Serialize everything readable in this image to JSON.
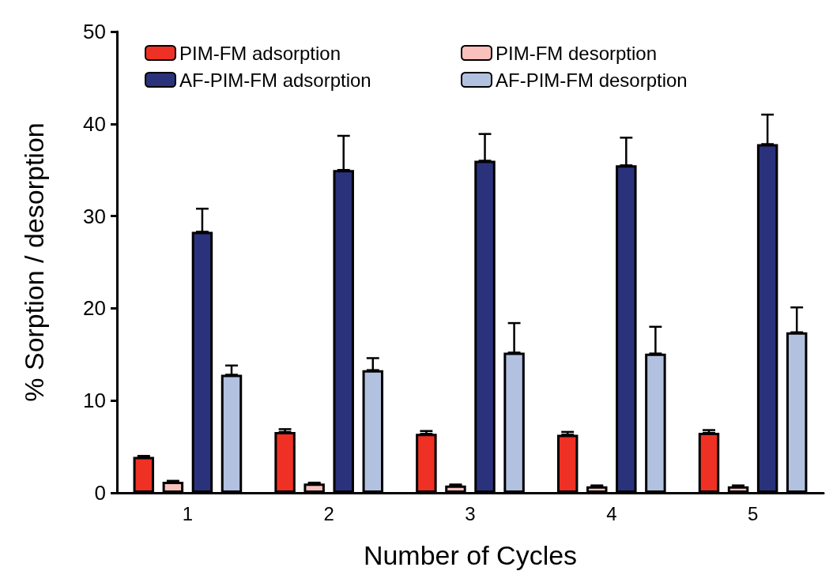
{
  "chart_data": {
    "type": "bar",
    "xlabel": "Number of Cycles",
    "ylabel": "% Sorption / desorption",
    "categories": [
      "1",
      "2",
      "3",
      "4",
      "5"
    ],
    "series": [
      {
        "name": "PIM-FM adsorption",
        "color": "#ee3124",
        "values": [
          3.9,
          6.6,
          6.4,
          6.3,
          6.5
        ],
        "errors": [
          [
            3.9,
            4.0
          ],
          [
            6.6,
            6.9
          ],
          [
            6.4,
            6.7
          ],
          [
            6.3,
            6.6
          ],
          [
            6.5,
            6.8
          ]
        ]
      },
      {
        "name": "PIM-FM desorption",
        "color": "#f9c0bc",
        "values": [
          1.2,
          1.0,
          0.8,
          0.7,
          0.7
        ],
        "errors": [
          [
            1.2,
            1.3
          ],
          [
            1.0,
            1.1
          ],
          [
            0.8,
            0.9
          ],
          [
            0.7,
            0.8
          ],
          [
            0.7,
            0.8
          ]
        ]
      },
      {
        "name": "AF-PIM-FM adsorption",
        "color": "#2b327c",
        "values": [
          28.3,
          35.0,
          36.0,
          35.5,
          37.8
        ],
        "errors": [
          [
            28.3,
            30.8
          ],
          [
            35.0,
            38.7
          ],
          [
            36.0,
            38.9
          ],
          [
            35.5,
            38.5
          ],
          [
            37.8,
            41.0
          ]
        ]
      },
      {
        "name": "AF-PIM-FM desorption",
        "color": "#b3c1e1",
        "values": [
          12.8,
          13.3,
          15.2,
          15.1,
          17.4
        ],
        "errors": [
          [
            12.8,
            13.8
          ],
          [
            13.3,
            14.6
          ],
          [
            15.2,
            18.4
          ],
          [
            15.1,
            18.0
          ],
          [
            17.4,
            20.1
          ]
        ]
      }
    ],
    "ylim": [
      0,
      50
    ],
    "yticks": [
      0,
      10,
      20,
      30,
      40,
      50
    ],
    "grid": false,
    "legend": "top left"
  }
}
